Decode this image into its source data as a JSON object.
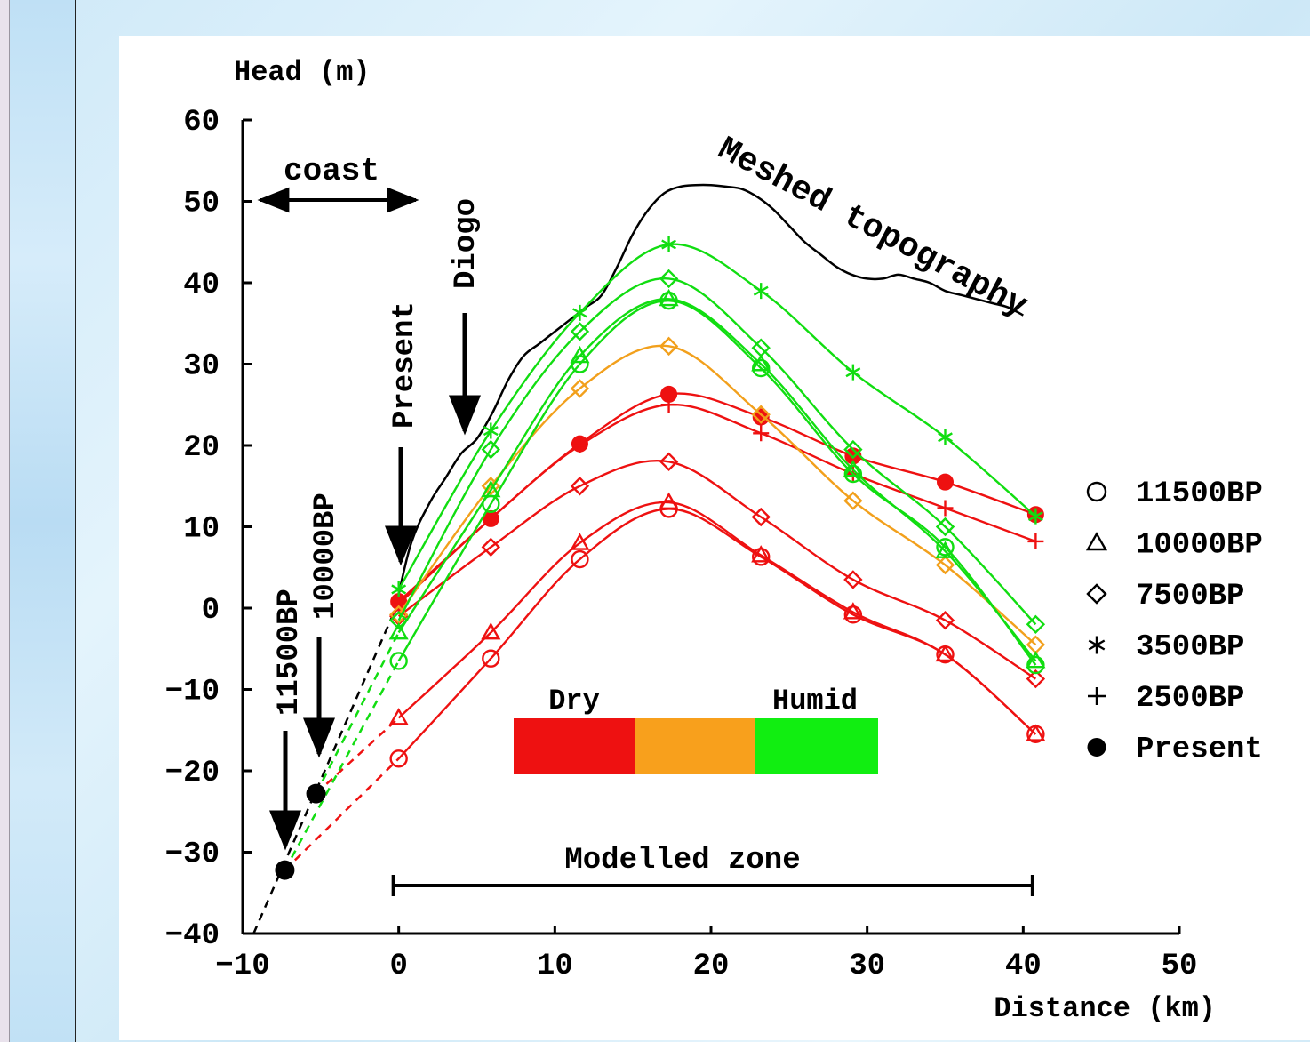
{
  "chart_data": {
    "type": "line",
    "xlabel": "Distance (km)",
    "ylabel": "Head (m)",
    "xlim": [
      -10,
      50
    ],
    "ylim": [
      -40,
      60
    ],
    "xticks": [
      "−10",
      "0",
      "10",
      "20",
      "30",
      "40",
      "50"
    ],
    "yticks": [
      "−40",
      "−30",
      "−20",
      "−10",
      "0",
      "10",
      "20",
      "30",
      "40",
      "50",
      "60"
    ],
    "topography_label": "Meshed topography",
    "topography": {
      "x": [
        -0.2,
        0.8,
        2,
        3,
        4,
        5,
        6,
        7,
        8,
        9,
        10,
        11,
        12,
        13,
        14,
        15,
        16,
        17,
        18,
        19,
        20,
        21,
        22,
        23,
        24,
        25,
        26,
        27,
        28,
        29,
        30,
        31,
        32,
        33,
        34,
        35,
        36,
        37,
        38,
        39,
        40
      ],
      "y": [
        0,
        8,
        13,
        16,
        19,
        20.8,
        24,
        28,
        31,
        32.5,
        34,
        35.5,
        37,
        38.5,
        42,
        46,
        49,
        51,
        51.8,
        52,
        52,
        51.8,
        51.5,
        50.5,
        49,
        47,
        45,
        43.5,
        42,
        41,
        40.5,
        40.5,
        41,
        40.5,
        40,
        39,
        38.5,
        38,
        37.5,
        37,
        36
      ]
    },
    "markers": [
      "○",
      "△",
      "◇",
      "✱",
      "+",
      "●"
    ],
    "legend": [
      {
        "marker": "○",
        "label": "11500BP"
      },
      {
        "marker": "△",
        "label": "10000BP"
      },
      {
        "marker": "◇",
        "label": "7500BP"
      },
      {
        "marker": "✱",
        "label": "3500BP"
      },
      {
        "marker": "+",
        "label": "2500BP"
      },
      {
        "marker": "●",
        "label": "Present"
      }
    ],
    "x": [
      0,
      5.9,
      11.6,
      17.3,
      23.2,
      29.1,
      35.0,
      40.8
    ],
    "series": [
      {
        "color": "#ee1111",
        "marker": "○",
        "values": [
          -18.5,
          -6.2,
          6.0,
          12.2,
          6.3,
          -0.8,
          -5.7,
          -15.5
        ]
      },
      {
        "color": "#ee1111",
        "marker": "△",
        "values": [
          -13.5,
          -3.0,
          8.0,
          13.0,
          6.5,
          -0.5,
          -5.7,
          -15.5
        ]
      },
      {
        "color": "#ee1111",
        "marker": "◇",
        "values": [
          -1.0,
          7.5,
          15.0,
          18.0,
          11.2,
          3.5,
          -1.5,
          -8.7
        ]
      },
      {
        "color": "#ee1111",
        "marker": "●",
        "values": [
          0.8,
          11.0,
          20.2,
          26.3,
          23.5,
          18.7,
          15.5,
          11.5
        ]
      },
      {
        "color": "#ee1111",
        "marker": "+",
        "values": [
          0.5,
          11.0,
          20.0,
          25.0,
          21.5,
          16.5,
          12.3,
          8.2
        ]
      },
      {
        "color": "#f2a01c",
        "marker": "◇",
        "values": [
          -0.8,
          15.0,
          27.0,
          32.2,
          23.8,
          13.2,
          5.3,
          -4.5
        ]
      },
      {
        "color": "#11dd11",
        "marker": "○",
        "values": [
          -6.5,
          12.8,
          30.0,
          37.8,
          29.5,
          16.5,
          7.5,
          -7.0
        ]
      },
      {
        "color": "#11dd11",
        "marker": "△",
        "values": [
          -3.0,
          14.5,
          31.0,
          38.0,
          30.0,
          17.0,
          7.0,
          -6.5
        ]
      },
      {
        "color": "#11dd11",
        "marker": "◇",
        "values": [
          -1.5,
          19.5,
          34.0,
          40.5,
          32.0,
          19.5,
          10.0,
          -2.0
        ]
      },
      {
        "color": "#11dd11",
        "marker": "✱",
        "values": [
          2.3,
          21.8,
          36.3,
          44.7,
          39.0,
          29.0,
          21.0,
          11.3
        ]
      }
    ],
    "extrapolation": {
      "from_x": [
        -9.3,
        -7.3,
        -5.3
      ],
      "from_y": [
        -40,
        -32.2,
        -22.8
      ],
      "to_x": 0
    },
    "paleo_points": [
      {
        "x": -7.3,
        "y": -32.2
      },
      {
        "x": -5.3,
        "y": -22.8
      }
    ],
    "annotations": {
      "coast": "coast",
      "present": "Present",
      "diogo": "Diogo",
      "bp10000": "10000BP",
      "bp11500": "11500BP",
      "modelled_zone": "Modelled zone",
      "modelled_zone_range": [
        0,
        40.6
      ]
    },
    "climate_bar": {
      "left_label": "Dry",
      "right_label": "Humid",
      "colors": [
        "#ee1111",
        "#f8a01c",
        "#11ee11"
      ]
    }
  }
}
